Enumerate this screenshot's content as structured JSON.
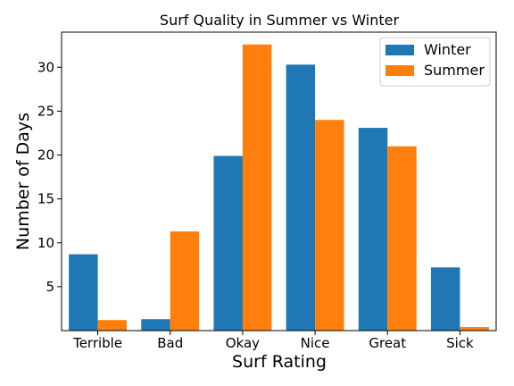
{
  "chart_data": {
    "type": "bar",
    "title": "Surf Quality in Summer vs Winter",
    "xlabel": "Surf Rating",
    "ylabel": "Number of Days",
    "categories": [
      "Terrible",
      "Bad",
      "Okay",
      "Nice",
      "Great",
      "Sick"
    ],
    "series": [
      {
        "name": "Winter",
        "color": "#1f77b4",
        "values": [
          8.7,
          1.3,
          19.9,
          30.3,
          23.1,
          7.2
        ]
      },
      {
        "name": "Summer",
        "color": "#ff7f0e",
        "values": [
          1.2,
          11.3,
          32.6,
          24.0,
          21.0,
          0.4
        ]
      }
    ],
    "ylim": [
      0,
      34
    ],
    "yticks": [
      5,
      10,
      15,
      20,
      25,
      30
    ],
    "grid": false,
    "legend_position": "top-right"
  }
}
